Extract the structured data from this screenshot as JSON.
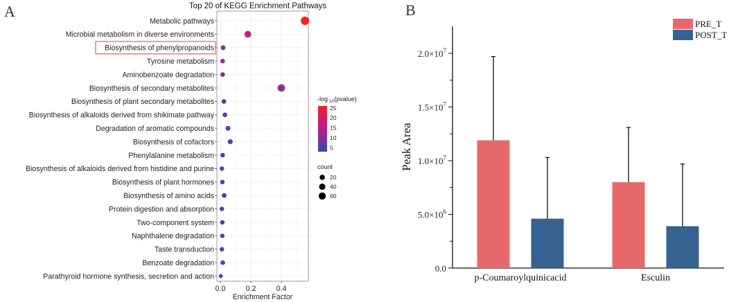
{
  "chart_data": [
    {
      "panel_label": "A",
      "type": "scatter",
      "title": "Top 20 of KEGG Enrichment Pathways",
      "xlabel": "Enrichment Factor",
      "ylabel": "",
      "xlim": [
        -0.01,
        0.57
      ],
      "x_ticks": [
        "0.0",
        "0.2",
        "0.4"
      ],
      "x_tick_values": [
        0,
        0.2,
        0.4
      ],
      "grid": true,
      "highlighted_category": "Biosynthesis of phenylpropanoids",
      "color_legend": {
        "title_prefix": "-log",
        "title_sub": "10",
        "title_suffix": "(pvalue)",
        "ticks": [
          "25",
          "20",
          "15",
          "10",
          "5"
        ],
        "tick_values": [
          25,
          20,
          15,
          10,
          5
        ],
        "range": [
          3,
          26
        ],
        "colors": [
          "#3b4aa8",
          "#8a2f92",
          "#d3177a",
          "#ee2424"
        ]
      },
      "size_legend": {
        "title": "count",
        "labels": [
          "20",
          "40",
          "60"
        ],
        "values": [
          20,
          40,
          60
        ]
      },
      "legend_position": "right",
      "points": [
        {
          "pathway": "Metabolic pathways",
          "enrichment": 0.555,
          "neglog10p": 26,
          "count": 60
        },
        {
          "pathway": "Microbial metabolism in diverse environments",
          "enrichment": 0.18,
          "neglog10p": 18,
          "count": 28
        },
        {
          "pathway": "Biosynthesis of phenylpropanoids",
          "enrichment": 0.018,
          "neglog10p": 11,
          "count": 6
        },
        {
          "pathway": "Tyrosine metabolism",
          "enrichment": 0.015,
          "neglog10p": 11,
          "count": 5
        },
        {
          "pathway": "Aminobenzoate degradation",
          "enrichment": 0.015,
          "neglog10p": 11,
          "count": 5
        },
        {
          "pathway": "Biosynthesis of secondary metabolites",
          "enrichment": 0.4,
          "neglog10p": 11,
          "count": 40
        },
        {
          "pathway": "Biosynthesis of plant secondary metabolites",
          "enrichment": 0.023,
          "neglog10p": 8,
          "count": 6
        },
        {
          "pathway": "Biosynthesis of alkaloids derived from shikimate pathway",
          "enrichment": 0.03,
          "neglog10p": 8,
          "count": 6
        },
        {
          "pathway": "Degradation of aromatic compounds",
          "enrichment": 0.05,
          "neglog10p": 7,
          "count": 7
        },
        {
          "pathway": "Biosynthesis of cofactors",
          "enrichment": 0.065,
          "neglog10p": 6,
          "count": 8
        },
        {
          "pathway": "Phenylalanine metabolism",
          "enrichment": 0.015,
          "neglog10p": 4,
          "count": 5
        },
        {
          "pathway": "Biosynthesis of alkaloids derived from histidine and purine",
          "enrichment": 0.01,
          "neglog10p": 4,
          "count": 4
        },
        {
          "pathway": "Biosynthesis of plant hormones",
          "enrichment": 0.013,
          "neglog10p": 4,
          "count": 5
        },
        {
          "pathway": "Biosynthesis of amino acids",
          "enrichment": 0.025,
          "neglog10p": 4,
          "count": 6
        },
        {
          "pathway": "Protein digestion and absorption",
          "enrichment": 0.01,
          "neglog10p": 4,
          "count": 4
        },
        {
          "pathway": "Two-component system",
          "enrichment": 0.013,
          "neglog10p": 4,
          "count": 4
        },
        {
          "pathway": "Naphthalene degradation",
          "enrichment": 0.013,
          "neglog10p": 4,
          "count": 4
        },
        {
          "pathway": "Taste transduction",
          "enrichment": 0.01,
          "neglog10p": 4,
          "count": 4
        },
        {
          "pathway": "Benzoate degradation",
          "enrichment": 0.016,
          "neglog10p": 4,
          "count": 5
        },
        {
          "pathway": "Parathyroid hormone synthesis, secretion and action",
          "enrichment": 0.003,
          "neglog10p": 3,
          "count": 2
        }
      ]
    },
    {
      "panel_label": "B",
      "type": "bar",
      "title": "",
      "xlabel": "",
      "ylabel": "Peak Area",
      "ylim": [
        0,
        22500000
      ],
      "y_ticks": [
        {
          "value": 0,
          "mantissa": "0.0",
          "exp": ""
        },
        {
          "value": 5000000,
          "mantissa": "5.0×10",
          "exp": "6"
        },
        {
          "value": 10000000,
          "mantissa": "1.0×10",
          "exp": "7"
        },
        {
          "value": 15000000,
          "mantissa": "1.5×10",
          "exp": "7"
        },
        {
          "value": 20000000,
          "mantissa": "2.0×10",
          "exp": "7"
        }
      ],
      "categories": [
        "p-Coumaroylquinicacid",
        "Esculin"
      ],
      "series": [
        {
          "name": "PRE_T",
          "color": "#e8696b",
          "values": [
            11900000,
            8000000
          ],
          "error_upper": [
            19700000,
            13100000
          ]
        },
        {
          "name": "POST_T",
          "color": "#356291",
          "values": [
            4600000,
            3900000
          ],
          "error_upper": [
            10300000,
            9700000
          ]
        }
      ],
      "legend_position": "top-right"
    }
  ]
}
